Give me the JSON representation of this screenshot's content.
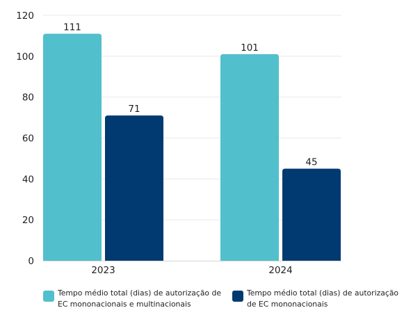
{
  "chart_data": {
    "type": "bar",
    "title": "",
    "xlabel": "",
    "ylabel": "",
    "categories": [
      "2023",
      "2024"
    ],
    "series": [
      {
        "name": "Tempo médio total (dias) de autorização de EC mononacionais e multinacionais",
        "values": [
          111,
          101
        ],
        "color": "#52bfcc"
      },
      {
        "name": "Tempo médio total (dias) de autorização de EC mononacionais",
        "values": [
          71,
          45
        ],
        "color": "#003a70"
      }
    ],
    "ylim": [
      0,
      120
    ],
    "yticks": [
      "0",
      "20",
      "40",
      "60",
      "80",
      "100",
      "120"
    ],
    "data_labels": [
      [
        "111",
        "101"
      ],
      [
        "71",
        "45"
      ]
    ],
    "grid": true,
    "legend_position": "bottom"
  }
}
